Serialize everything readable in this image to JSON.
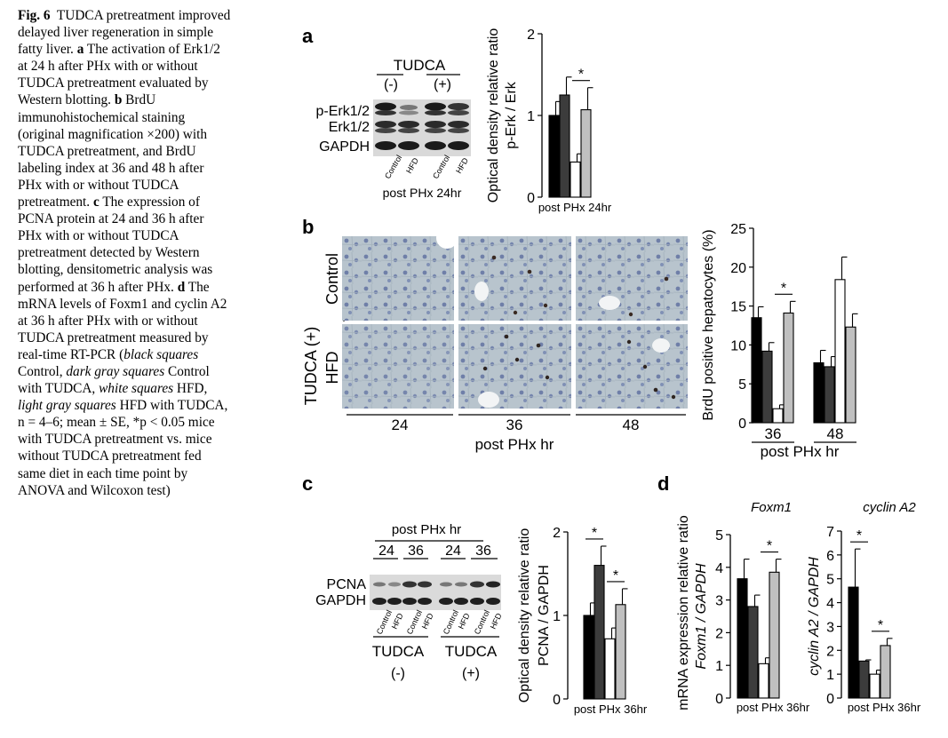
{
  "caption": {
    "fig_label": "Fig. 6",
    "title": "TUDCA pretreatment improved delayed liver regeneration in simple fatty liver.",
    "a_label": "a",
    "a_text": "The activation of Erk1/2 at 24 h after PHx with or without TUDCA pretreatment evaluated by Western blotting.",
    "b_label": "b",
    "b_text": "BrdU immunohistochemical staining (original magnification ×200) with TUDCA pretreatment, and BrdU labeling index at 36 and 48 h after PHx with or without TUDCA pretreatment.",
    "c_label": "c",
    "c_text": "The expression of PCNA protein at 24 and 36 h after PHx with or without TUDCA pretreatment detected by Western blotting, densitometric analysis was performed at 36 h after PHx.",
    "d_label": "d",
    "d_text": "The mRNA levels of Foxm1 and cyclin A2 at 36 h after PHx with or without TUDCA pretreatment measured by real-time RT-PCR (",
    "legend_black": "black squares",
    "legend_black_txt": "Control,",
    "legend_dgray": "dark gray squares",
    "legend_dgray_txt": "Control with TUDCA,",
    "legend_white": "white squares",
    "legend_white_txt": "HFD,",
    "legend_lgray": "light gray squares",
    "legend_lgray_txt": "HFD with TUDCA,",
    "n_text": "n = 4–6; mean ± SE,",
    "p_text": "*p < 0.05 mice with TUDCA pretreatment vs. mice without TUDCA pretreatment fed same diet in each time point by ANOVA and Wilcoxon test)"
  },
  "colors": {
    "control": "#000000",
    "control_tudca": "#3c3c3c",
    "hfd": "#ffffff",
    "hfd_tudca": "#c0c0c0"
  },
  "panel_a": {
    "letter": "a",
    "blot": {
      "header": "TUDCA",
      "minus": "(-)",
      "plus": "(+)",
      "rows": [
        "p-Erk1/2",
        "Erk1/2",
        "GAPDH"
      ],
      "lanes": [
        "Control",
        "HFD",
        "Control",
        "HFD"
      ],
      "footer": "post PHx 24hr"
    }
  },
  "panel_b": {
    "letter": "b",
    "side_group": "TUDCA (+)",
    "row_labels": [
      "Control",
      "HFD"
    ],
    "col_labels": [
      "24",
      "36",
      "48"
    ],
    "x_title": "post PHx hr"
  },
  "panel_c": {
    "letter": "c",
    "blot": {
      "header": "post PHx hr",
      "times": [
        "24",
        "36",
        "24",
        "36"
      ],
      "rows": [
        "PCNA",
        "GAPDH"
      ],
      "lanes": [
        "Control",
        "HFD",
        "Control",
        "HFD",
        "Control",
        "HFD",
        "Control",
        "HFD"
      ],
      "groups": [
        {
          "name": "TUDCA",
          "sign": "(-)"
        },
        {
          "name": "TUDCA",
          "sign": "(+)"
        }
      ]
    }
  },
  "panel_d": {
    "letter": "d",
    "shared_ylabel": "mRNA expression relative ratio"
  },
  "chart_data": [
    {
      "id": "a",
      "type": "bar",
      "ylabel": "Optical density relative ratio",
      "ylabel2": "p-Erk / Erk",
      "xlabel": "post PHx 24hr",
      "ylim": [
        0,
        2
      ],
      "yticks": [
        0,
        1,
        2
      ],
      "series": [
        {
          "name": "Control",
          "values": [
            1.0
          ],
          "err": [
            0.17
          ]
        },
        {
          "name": "Control with TUDCA",
          "values": [
            1.25
          ],
          "err": [
            0.22
          ]
        },
        {
          "name": "HFD",
          "values": [
            0.43
          ],
          "err": [
            0.1
          ]
        },
        {
          "name": "HFD with TUDCA",
          "values": [
            1.07
          ],
          "err": [
            0.27
          ]
        }
      ],
      "significance": [
        {
          "pair": [
            2,
            3
          ],
          "label": "*"
        }
      ]
    },
    {
      "id": "b",
      "type": "bar",
      "ylabel": "BrdU positive hepatocytes (%)",
      "xlabel": "post PHx hr",
      "categories": [
        "36",
        "48"
      ],
      "ylim": [
        0,
        25
      ],
      "yticks": [
        0,
        5,
        10,
        15,
        20,
        25
      ],
      "series": [
        {
          "name": "Control",
          "values": [
            13.5,
            7.7
          ],
          "err": [
            1.4,
            1.6
          ]
        },
        {
          "name": "Control with TUDCA",
          "values": [
            9.2,
            7.2
          ],
          "err": [
            1.1,
            1.3
          ]
        },
        {
          "name": "HFD",
          "values": [
            1.8,
            18.4
          ],
          "err": [
            0.5,
            2.9
          ]
        },
        {
          "name": "HFD with TUDCA",
          "values": [
            14.1,
            12.3
          ],
          "err": [
            1.5,
            1.7
          ]
        }
      ],
      "significance": [
        {
          "category": 0,
          "pair": [
            2,
            3
          ],
          "label": "*"
        }
      ]
    },
    {
      "id": "c",
      "type": "bar",
      "ylabel": "Optical density relative ratio",
      "ylabel2": "PCNA / GAPDH",
      "xlabel": "post PHx 36hr",
      "ylim": [
        0,
        2
      ],
      "yticks": [
        0,
        1,
        2
      ],
      "series": [
        {
          "name": "Control",
          "values": [
            1.0
          ],
          "err": [
            0.15
          ]
        },
        {
          "name": "Control with TUDCA",
          "values": [
            1.6
          ],
          "err": [
            0.23
          ]
        },
        {
          "name": "HFD",
          "values": [
            0.72
          ],
          "err": [
            0.13
          ]
        },
        {
          "name": "HFD with TUDCA",
          "values": [
            1.13
          ],
          "err": [
            0.19
          ]
        }
      ],
      "significance": [
        {
          "pair": [
            0,
            1
          ],
          "label": "*"
        },
        {
          "pair": [
            2,
            3
          ],
          "label": "*"
        }
      ]
    },
    {
      "id": "d1",
      "type": "bar",
      "title": "Foxm1",
      "ylabel": "Foxm1 / GAPDH",
      "xlabel": "post PHx 36hr",
      "ylim": [
        0,
        5
      ],
      "yticks": [
        0,
        1,
        2,
        3,
        4,
        5
      ],
      "series": [
        {
          "name": "Control",
          "values": [
            3.65
          ],
          "err": [
            0.6
          ]
        },
        {
          "name": "Control with TUDCA",
          "values": [
            2.8
          ],
          "err": [
            0.35
          ]
        },
        {
          "name": "HFD",
          "values": [
            1.05
          ],
          "err": [
            0.18
          ]
        },
        {
          "name": "HFD with TUDCA",
          "values": [
            3.85
          ],
          "err": [
            0.4
          ]
        }
      ],
      "significance": [
        {
          "pair": [
            2,
            3
          ],
          "label": "*"
        }
      ]
    },
    {
      "id": "d2",
      "type": "bar",
      "title": "cyclin A2",
      "ylabel": "cyclin A2 / GAPDH",
      "xlabel": "post PHx 36hr",
      "ylim": [
        0,
        7
      ],
      "yticks": [
        0,
        1,
        2,
        3,
        4,
        5,
        6,
        7
      ],
      "series": [
        {
          "name": "Control",
          "values": [
            4.65
          ],
          "err": [
            1.6
          ]
        },
        {
          "name": "Control with TUDCA",
          "values": [
            1.55
          ],
          "err": [
            0.05
          ]
        },
        {
          "name": "HFD",
          "values": [
            1.0
          ],
          "err": [
            0.17
          ]
        },
        {
          "name": "HFD with TUDCA",
          "values": [
            2.2
          ],
          "err": [
            0.3
          ]
        }
      ],
      "significance": [
        {
          "pair": [
            0,
            1
          ],
          "label": "*"
        },
        {
          "pair": [
            2,
            3
          ],
          "label": "*"
        }
      ]
    }
  ]
}
